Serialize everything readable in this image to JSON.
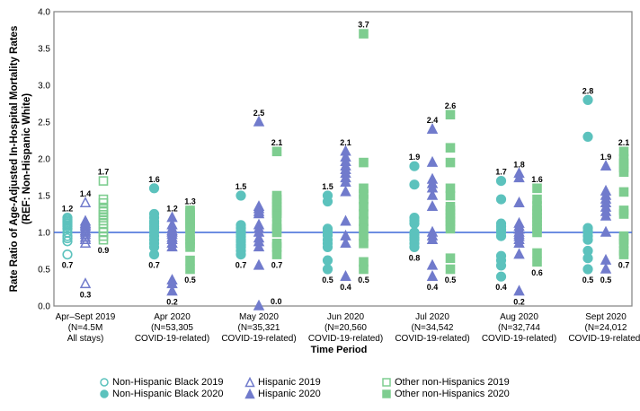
{
  "chart_data": {
    "type": "scatter",
    "title": "",
    "xlabel": "Time Period",
    "ylabel_line1": "Rate Ratio of Age-Adjusted In-Hospital Mortality Rates",
    "ylabel_line2": "(REF: Non-Hispanic White)",
    "ylim": [
      0.0,
      4.0
    ],
    "ytick_step": 0.5,
    "grid": false,
    "legend_position": "bottom",
    "reference_line": {
      "y": 1.0,
      "color": "#3E68D8"
    },
    "colors": {
      "axis_border": "#8A8A8A",
      "teal": "#5CC2BD",
      "purple": "#717BCC",
      "green": "#7ECD90"
    },
    "categories": [
      {
        "lines": [
          "Apr–Sept 2019",
          "(N=4.5M",
          "All stays)"
        ]
      },
      {
        "lines": [
          "Apr 2020",
          "(N=53,305",
          "COVID-19-related)"
        ]
      },
      {
        "lines": [
          "May 2020",
          "(N=35,321",
          "COVID-19-related)"
        ]
      },
      {
        "lines": [
          "Jun 2020",
          "(N=20,560",
          "COVID-19-related)"
        ]
      },
      {
        "lines": [
          "Jul 2020",
          "(N=34,542",
          "COVID-19-related)"
        ]
      },
      {
        "lines": [
          "Aug 2020",
          "(N=32,744",
          "COVID-19-related)"
        ]
      },
      {
        "lines": [
          "Sept 2020",
          "(N=24,012",
          "COVID-19-related)"
        ]
      }
    ],
    "series": [
      {
        "name": "Non-Hispanic Black 2019",
        "marker": "circle",
        "filled": false,
        "color": "#5CC2BD",
        "values": [
          [
            1.2,
            1.18,
            1.16,
            1.14,
            1.12,
            1.1,
            1.08,
            1.05,
            1.0,
            0.95,
            0.92,
            0.88,
            0.7
          ],
          [],
          [],
          [],
          [],
          [],
          []
        ]
      },
      {
        "name": "Hispanic 2019",
        "marker": "triangle",
        "filled": false,
        "color": "#717BCC",
        "values": [
          [
            1.4,
            1.15,
            1.12,
            1.1,
            1.08,
            1.05,
            1.02,
            1.0,
            0.97,
            0.93,
            0.9,
            0.85,
            0.3
          ],
          [],
          [],
          [],
          [],
          [],
          []
        ]
      },
      {
        "name": "Other non-Hispanics 2019",
        "marker": "square",
        "filled": false,
        "color": "#7ECD90",
        "values": [
          [
            1.7,
            1.45,
            1.4,
            1.32,
            1.28,
            1.24,
            1.2,
            1.16,
            1.12,
            1.05,
            1.0,
            0.95,
            0.9
          ],
          [],
          [],
          [],
          [],
          [],
          []
        ]
      },
      {
        "name": "Non-Hispanic Black 2020",
        "marker": "circle",
        "filled": true,
        "color": "#5CC2BD",
        "values": [
          [],
          [
            1.6,
            1.25,
            1.2,
            1.15,
            1.12,
            1.08,
            1.05,
            1.0,
            0.95,
            0.9,
            0.85,
            0.8,
            0.7
          ],
          [
            1.5,
            1.1,
            1.06,
            1.02,
            1.0,
            0.97,
            0.94,
            0.9,
            0.87,
            0.83,
            0.8,
            0.75,
            0.7
          ],
          [
            1.5,
            1.42,
            1.05,
            1.02,
            1.0,
            0.96,
            0.9,
            0.85,
            0.8,
            0.62,
            0.5
          ],
          [
            1.9,
            1.65,
            1.2,
            1.16,
            1.12,
            1.0,
            0.97,
            0.93,
            0.9,
            0.85,
            0.8
          ],
          [
            1.7,
            1.45,
            1.12,
            1.08,
            1.04,
            1.0,
            0.95,
            0.68,
            0.62,
            0.55,
            0.4
          ],
          [
            2.8,
            2.3,
            1.06,
            1.02,
            1.0,
            0.95,
            0.9,
            0.75,
            0.65,
            0.5
          ]
        ]
      },
      {
        "name": "Hispanic 2020",
        "marker": "triangle",
        "filled": true,
        "color": "#717BCC",
        "values": [
          [],
          [
            1.2,
            1.1,
            1.05,
            1.02,
            1.0,
            0.97,
            0.93,
            0.9,
            0.85,
            0.8,
            0.35,
            0.3,
            0.2
          ],
          [
            2.5,
            1.35,
            1.32,
            1.28,
            1.25,
            1.1,
            1.05,
            1.0,
            0.92,
            0.87,
            0.8,
            0.55,
            0.0
          ],
          [
            2.1,
            2.02,
            1.96,
            1.9,
            1.85,
            1.8,
            1.74,
            1.68,
            1.55,
            1.15,
            0.95,
            0.85,
            0.4
          ],
          [
            2.4,
            1.95,
            1.72,
            1.66,
            1.6,
            1.5,
            1.35,
            1.0,
            0.95,
            0.9,
            0.55,
            0.4
          ],
          [
            1.8,
            1.74,
            1.4,
            1.12,
            1.08,
            1.04,
            1.0,
            0.97,
            0.94,
            0.9,
            0.85,
            0.7,
            0.2
          ],
          [
            1.9,
            1.56,
            1.5,
            1.45,
            1.4,
            1.34,
            1.28,
            1.22,
            1.0,
            0.62,
            0.5
          ]
        ]
      },
      {
        "name": "Other non-Hispanics 2020",
        "marker": "square",
        "filled": true,
        "color": "#7ECD90",
        "values": [
          [],
          [
            1.3,
            1.27,
            1.24,
            1.2,
            1.16,
            1.12,
            1.08,
            1.05,
            0.95,
            0.9,
            0.85,
            0.8,
            0.62,
            0.5
          ],
          [
            2.1,
            1.5,
            1.45,
            1.4,
            1.35,
            1.3,
            1.26,
            1.22,
            1.1,
            1.05,
            1.0,
            0.85,
            0.8,
            0.7
          ],
          [
            3.7,
            1.95,
            1.6,
            1.52,
            1.45,
            1.35,
            1.25,
            1.15,
            1.05,
            0.95,
            0.85,
            0.6,
            0.5
          ],
          [
            2.6,
            2.15,
            1.95,
            1.6,
            1.5,
            1.35,
            1.3,
            1.25,
            1.2,
            1.15,
            1.1,
            1.05,
            0.65,
            0.5
          ],
          [
            1.6,
            1.45,
            1.36,
            1.3,
            1.25,
            1.2,
            1.15,
            1.1,
            1.05,
            1.0,
            0.72,
            0.6
          ],
          [
            2.1,
            2.0,
            1.94,
            1.88,
            1.82,
            1.55,
            1.3,
            1.25,
            0.95,
            0.9,
            0.85,
            0.75,
            0.7
          ]
        ]
      }
    ],
    "extreme_labels": {
      "note": "min and max of each group per period are labeled on the plot, formatted to 1 decimal",
      "by_period": [
        {
          "circle": [
            0.7,
            1.2
          ],
          "triangle": [
            0.3,
            1.4
          ],
          "square": [
            0.9,
            1.7
          ]
        },
        {
          "circle": [
            0.7,
            1.6
          ],
          "triangle": [
            0.2,
            1.2
          ],
          "square": [
            0.5,
            1.3
          ]
        },
        {
          "circle": [
            0.7,
            1.5
          ],
          "triangle": [
            0.0,
            2.5
          ],
          "square": [
            0.7,
            2.1
          ]
        },
        {
          "circle": [
            0.5,
            1.5
          ],
          "triangle": [
            0.4,
            2.1
          ],
          "square": [
            0.5,
            3.7
          ]
        },
        {
          "circle": [
            0.8,
            1.9
          ],
          "triangle": [
            0.4,
            2.4
          ],
          "square": [
            0.5,
            2.6
          ]
        },
        {
          "circle": [
            0.4,
            1.7
          ],
          "triangle": [
            0.2,
            1.8
          ],
          "square": [
            0.6,
            1.6
          ]
        },
        {
          "circle": [
            0.5,
            2.8
          ],
          "triangle": [
            0.5,
            1.9
          ],
          "square": [
            0.7,
            2.1
          ]
        }
      ]
    },
    "legend": [
      {
        "label": "Non-Hispanic Black 2019",
        "marker": "circle",
        "filled": false,
        "color": "#5CC2BD"
      },
      {
        "label": "Hispanic 2019",
        "marker": "triangle",
        "filled": false,
        "color": "#717BCC"
      },
      {
        "label": "Other non-Hispanics 2019",
        "marker": "square",
        "filled": false,
        "color": "#7ECD90"
      },
      {
        "label": "Non-Hispanic Black 2020",
        "marker": "circle",
        "filled": true,
        "color": "#5CC2BD"
      },
      {
        "label": "Hispanic 2020",
        "marker": "triangle",
        "filled": true,
        "color": "#717BCC"
      },
      {
        "label": "Other non-Hispanics 2020",
        "marker": "square",
        "filled": true,
        "color": "#7ECD90"
      }
    ]
  }
}
